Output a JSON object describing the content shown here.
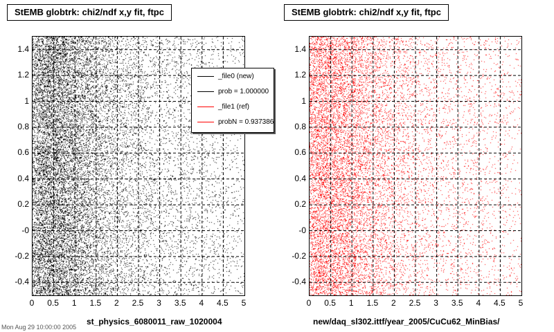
{
  "panels": [
    {
      "title": "StEMB globtrk: chi2/ndf x,y fit, ftpc",
      "xlabel": "st_physics_6080011_raw_1020004"
    },
    {
      "title": "StEMB globtrk: chi2/ndf x,y fit, ftpc",
      "xlabel": "new/daq_sl302.ittf/year_2005/CuCu62_MinBias/"
    }
  ],
  "legend": {
    "entries": [
      {
        "label": "_file0 (new)",
        "color": "#000000"
      },
      {
        "label": "prob = 1.000000",
        "color": "#000000"
      },
      {
        "label": "_file1 (ref)",
        "color": "#ff0000"
      },
      {
        "label": "probN = 0.937386",
        "color": "#ff0000"
      }
    ]
  },
  "footer": "Mon Aug 29 10:00:00 2005",
  "chart_data": [
    {
      "type": "scatter",
      "title": "StEMB globtrk: chi2/ndf x,y fit, ftpc",
      "xlabel": "st_physics_6080011_raw_1020004",
      "ylabel": "",
      "xlim": [
        0,
        5
      ],
      "ylim": [
        -0.5,
        1.5
      ],
      "x_ticks": [
        "0",
        "0.5",
        "1",
        "1.5",
        "2",
        "2.5",
        "3",
        "3.5",
        "4",
        "4.5",
        "5"
      ],
      "y_ticks": [
        "-0.4",
        "-0.2",
        "-0",
        "0.2",
        "0.4",
        "0.6",
        "0.8",
        "1",
        "1.2",
        "1.4"
      ],
      "grid": true,
      "series": [
        {
          "name": "_file0 (new)",
          "color": "#000000",
          "density_profile": {
            "x": [
              0,
              0.25,
              0.5,
              0.75,
              1.0,
              1.5,
              2.0,
              3.0,
              5.0
            ],
            "relative_density": [
              0.7,
              1.0,
              0.95,
              0.9,
              0.7,
              0.45,
              0.3,
              0.15,
              0.08
            ]
          },
          "points": 16000
        }
      ],
      "legend_position": "top-right"
    },
    {
      "type": "scatter",
      "title": "StEMB globtrk: chi2/ndf x,y fit, ftpc",
      "xlabel": "new/daq_sl302.ittf/year_2005/CuCu62_MinBias/",
      "ylabel": "",
      "xlim": [
        0,
        5
      ],
      "ylim": [
        -0.5,
        1.5
      ],
      "x_ticks": [
        "0",
        "0.5",
        "1",
        "1.5",
        "2",
        "2.5",
        "3",
        "3.5",
        "4",
        "4.5",
        "5"
      ],
      "y_ticks": [
        "-0.4",
        "-0.2",
        "-0",
        "0.2",
        "0.4",
        "0.6",
        "0.8",
        "1",
        "1.2",
        "1.4"
      ],
      "grid": true,
      "series": [
        {
          "name": "_file1 (ref)",
          "color": "#ff0000",
          "density_profile": {
            "x": [
              0,
              0.25,
              0.5,
              0.75,
              1.0,
              1.5,
              2.0,
              3.0,
              5.0
            ],
            "relative_density": [
              0.75,
              1.0,
              0.95,
              0.85,
              0.7,
              0.45,
              0.3,
              0.15,
              0.08
            ]
          },
          "points": 12000
        }
      ]
    }
  ]
}
